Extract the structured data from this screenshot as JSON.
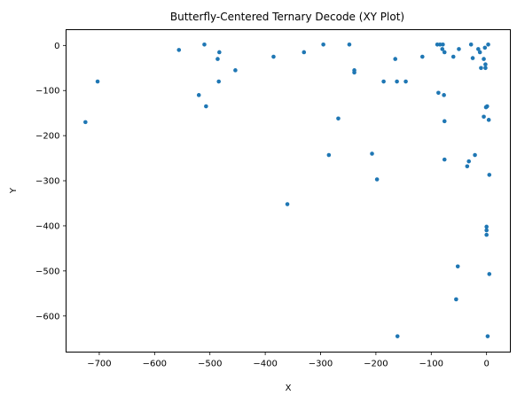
{
  "chart_data": {
    "type": "scatter",
    "title": "Butterfly-Centered Ternary Decode (XY Plot)",
    "xlabel": "X",
    "ylabel": "Y",
    "xlim": [
      -760,
      43
    ],
    "ylim": [
      -680,
      35
    ],
    "x_ticks": [
      -700,
      -600,
      -500,
      -400,
      -300,
      -200,
      -100,
      0
    ],
    "y_ticks": [
      0,
      -100,
      -200,
      -300,
      -400,
      -500,
      -600
    ],
    "grid": false,
    "legend": "none",
    "marker_color": "#1f77b4",
    "series": [
      {
        "points": [
          [
            -725,
            -170
          ],
          [
            -703,
            -80
          ],
          [
            -556,
            -10
          ],
          [
            -520,
            -110
          ],
          [
            -510,
            2
          ],
          [
            -507,
            -135
          ],
          [
            -486,
            -30
          ],
          [
            -484,
            -80
          ],
          [
            -483,
            -15
          ],
          [
            -454,
            -55
          ],
          [
            -385,
            -25
          ],
          [
            -360,
            -352
          ],
          [
            -330,
            -15
          ],
          [
            -295,
            2
          ],
          [
            -285,
            -243
          ],
          [
            -268,
            -162
          ],
          [
            -248,
            2
          ],
          [
            -239,
            -55
          ],
          [
            -239,
            -60
          ],
          [
            -207,
            -240
          ],
          [
            -198,
            -297
          ],
          [
            -186,
            -80
          ],
          [
            -165,
            -30
          ],
          [
            -162,
            -80
          ],
          [
            -161,
            -645
          ],
          [
            -146,
            -80
          ],
          [
            -116,
            -25
          ],
          [
            -89,
            2
          ],
          [
            -87,
            -105
          ],
          [
            -84,
            2
          ],
          [
            -80,
            -8
          ],
          [
            -79,
            2
          ],
          [
            -77,
            -110
          ],
          [
            -76,
            -168
          ],
          [
            -76,
            -253
          ],
          [
            -76,
            -15
          ],
          [
            -60,
            -25
          ],
          [
            -55,
            -563
          ],
          [
            -52,
            -490
          ],
          [
            -50,
            -8
          ],
          [
            -35,
            -268
          ],
          [
            -32,
            -257
          ],
          [
            -28,
            2
          ],
          [
            -25,
            -28
          ],
          [
            -21,
            -243
          ],
          [
            -15,
            -8
          ],
          [
            -12,
            -15
          ],
          [
            -10,
            -50
          ],
          [
            -5,
            -30
          ],
          [
            -5,
            -158
          ],
          [
            -3,
            -5
          ],
          [
            -2,
            -42
          ],
          [
            -2,
            -50
          ],
          [
            -1,
            -137
          ],
          [
            0,
            -402
          ],
          [
            0,
            -410
          ],
          [
            0,
            -420
          ],
          [
            1,
            -135
          ],
          [
            2,
            -645
          ],
          [
            3,
            2
          ],
          [
            4,
            -165
          ],
          [
            5,
            -287
          ],
          [
            5,
            -507
          ]
        ]
      }
    ]
  }
}
